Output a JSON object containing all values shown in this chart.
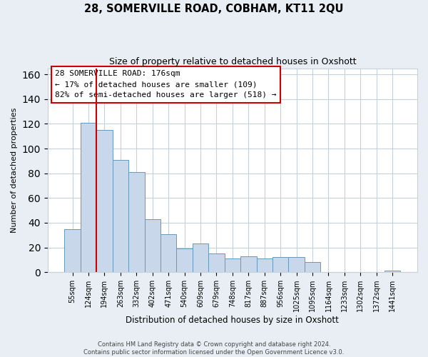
{
  "title": "28, SOMERVILLE ROAD, COBHAM, KT11 2QU",
  "subtitle": "Size of property relative to detached houses in Oxshott",
  "xlabel": "Distribution of detached houses by size in Oxshott",
  "ylabel": "Number of detached properties",
  "bar_labels": [
    "55sqm",
    "124sqm",
    "194sqm",
    "263sqm",
    "332sqm",
    "402sqm",
    "471sqm",
    "540sqm",
    "609sqm",
    "679sqm",
    "748sqm",
    "817sqm",
    "887sqm",
    "956sqm",
    "1025sqm",
    "1095sqm",
    "1164sqm",
    "1233sqm",
    "1302sqm",
    "1372sqm",
    "1441sqm"
  ],
  "bar_values": [
    35,
    121,
    115,
    91,
    81,
    43,
    31,
    19,
    23,
    15,
    11,
    13,
    11,
    12,
    12,
    8,
    0,
    0,
    0,
    0,
    1
  ],
  "bar_color": "#c8d8ea",
  "bar_edge_color": "#6699bb",
  "vline_color": "#cc0000",
  "ylim": [
    0,
    165
  ],
  "yticks": [
    0,
    20,
    40,
    60,
    80,
    100,
    120,
    140,
    160
  ],
  "annotation_title": "28 SOMERVILLE ROAD: 176sqm",
  "annotation_line1": "← 17% of detached houses are smaller (109)",
  "annotation_line2": "82% of semi-detached houses are larger (518) →",
  "annotation_box_color": "#ffffff",
  "annotation_box_edge": "#cc0000",
  "footer_line1": "Contains HM Land Registry data © Crown copyright and database right 2024.",
  "footer_line2": "Contains public sector information licensed under the Open Government Licence v3.0.",
  "background_color": "#e8eef4",
  "plot_background_color": "#ffffff",
  "grid_color": "#c8d0d8"
}
